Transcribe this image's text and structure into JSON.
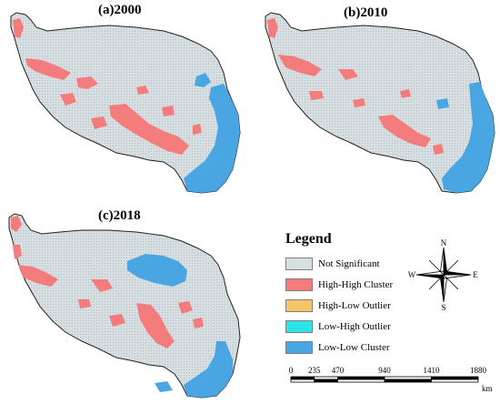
{
  "panels": [
    {
      "id": "a",
      "title": "(a)2000"
    },
    {
      "id": "b",
      "title": "(b)2010"
    },
    {
      "id": "c",
      "title": "(c)2018"
    }
  ],
  "legend": {
    "title": "Legend",
    "items": [
      {
        "label": "Not Significant",
        "color": "#d7dfe3"
      },
      {
        "label": "High-High Cluster",
        "color": "#f47c7c"
      },
      {
        "label": "High-Low Outlier",
        "color": "#f6c46a"
      },
      {
        "label": "Low-High Outlier",
        "color": "#2ee3e8"
      },
      {
        "label": "Low-Low Cluster",
        "color": "#4aa6e3"
      }
    ]
  },
  "compass": {
    "n": "N",
    "s": "S",
    "e": "E",
    "w": "W"
  },
  "scalebar": {
    "ticks": [
      "0",
      "235",
      "470",
      "940",
      "1410",
      "1880"
    ],
    "tick_values_km": [
      0,
      235,
      470,
      940,
      1410,
      1880
    ],
    "unit": "km"
  }
}
